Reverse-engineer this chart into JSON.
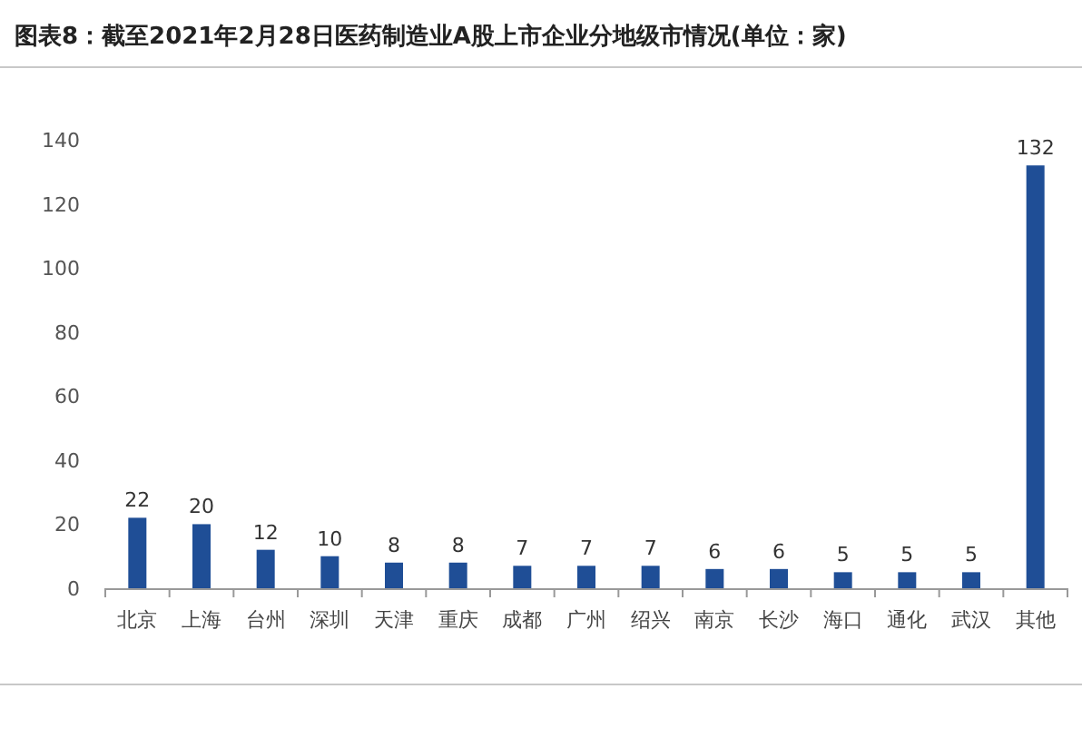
{
  "chart_data": {
    "type": "bar",
    "title": "图表8：截至2021年2月28日医药制造业A股上市企业分地级市情况(单位：家)",
    "categories": [
      "北京",
      "上海",
      "台州",
      "深圳",
      "天津",
      "重庆",
      "成都",
      "广州",
      "绍兴",
      "南京",
      "长沙",
      "海口",
      "通化",
      "武汉",
      "其他"
    ],
    "values": [
      22,
      20,
      12,
      10,
      8,
      8,
      7,
      7,
      7,
      6,
      6,
      5,
      5,
      5,
      132
    ],
    "color": "#1f4e96",
    "ylim": [
      0,
      140
    ],
    "yticks": [
      0,
      20,
      40,
      60,
      80,
      100,
      120,
      140
    ],
    "data_labels": true
  }
}
